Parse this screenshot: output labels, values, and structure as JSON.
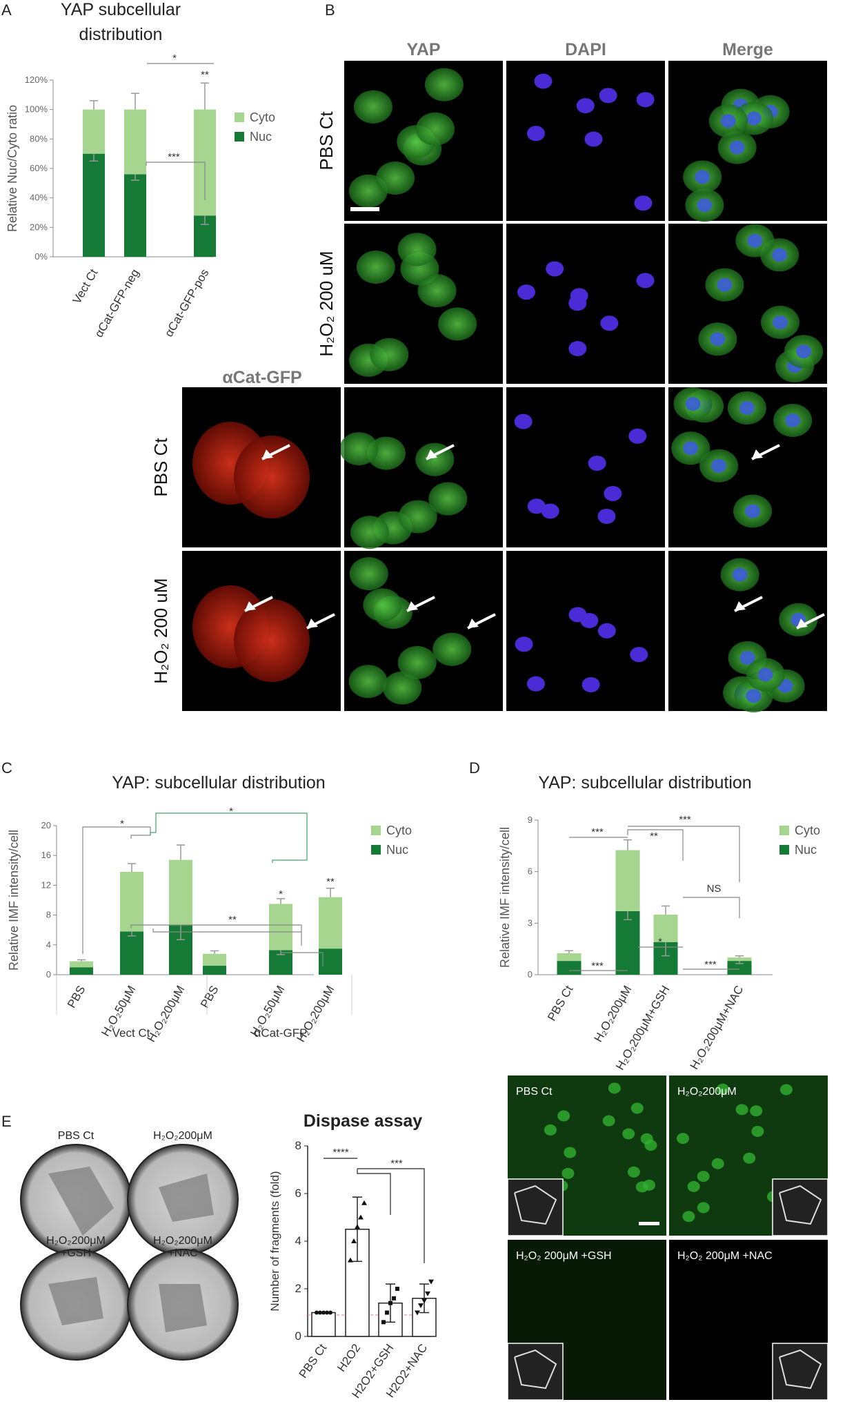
{
  "panel_labels": {
    "A": "A",
    "B": "B",
    "C": "C",
    "D": "D",
    "E": "E"
  },
  "colors": {
    "cyto": "#a6d58f",
    "nuc": "#147a35",
    "panel_bg": "#000000"
  },
  "panelB": {
    "columns": [
      "YAP",
      "DAPI",
      "Merge"
    ],
    "alpha_header": "αCat-GFP",
    "rows": [
      "PBS Ct",
      "H₂O₂ 200 uM",
      "PBS Ct",
      "H₂O₂ 200 uM"
    ]
  },
  "panelD_micro": {
    "labels": [
      "PBS  Ct",
      "H₂O₂200μM",
      "H₂O₂ 200μM +GSH",
      "H₂O₂ 200μM +NAC"
    ]
  },
  "panelE_dishes": {
    "labels": [
      "PBS Ct",
      "H₂O₂200μM",
      "H₂O₂200μM",
      "+GSH",
      "H₂O₂200μM",
      "+NAC"
    ]
  },
  "chart_data": [
    {
      "id": "A",
      "type": "bar",
      "title": "YAP subcellular distribution",
      "ylabel": "Relative Nuc/Cyto ratio",
      "yticks": [
        "0%",
        "20%",
        "40%",
        "60%",
        "80%",
        "100%",
        "120%"
      ],
      "ylim": [
        0,
        120
      ],
      "categories": [
        "Vect Ct",
        "αCat-GFP-neg",
        "αCat-GFP-pos"
      ],
      "series": [
        {
          "name": "Nuc",
          "values": [
            70,
            56,
            28
          ],
          "errors": [
            5,
            4,
            6
          ]
        },
        {
          "name": "Cyto",
          "values": [
            30,
            44,
            72
          ],
          "errors": [
            6,
            11,
            18
          ]
        }
      ],
      "legend": [
        "Cyto",
        "Nuc"
      ],
      "legend_position": "right",
      "significance": [
        "*",
        "**",
        "***"
      ]
    },
    {
      "id": "C",
      "type": "bar",
      "title": "YAP: subcellular distribution",
      "ylabel": "Relative IMF intensity/cell",
      "yticks": [
        "0",
        "4",
        "8",
        "12",
        "16",
        "20"
      ],
      "ylim": [
        0,
        20
      ],
      "categories": [
        "PBS",
        "H₂O₂50μM",
        "H₂O₂200μM",
        "PBS",
        "H₂O₂50μM",
        "H₂O₂200μM"
      ],
      "groups": [
        "Vect Ct",
        "αCat-GFP"
      ],
      "series": [
        {
          "name": "Nuc",
          "values": [
            1.0,
            5.8,
            6.7,
            1.2,
            3.3,
            3.5
          ],
          "errors": [
            0,
            0.6,
            2.0,
            0,
            0.6,
            0
          ]
        },
        {
          "name": "Cyto",
          "values": [
            0.8,
            8.0,
            8.7,
            1.6,
            6.2,
            6.9
          ],
          "errors": [
            0.2,
            1.1,
            2.0,
            0.4,
            0.7,
            1.2
          ]
        }
      ],
      "legend": [
        "Cyto",
        "Nuc"
      ],
      "legend_position": "right",
      "significance": [
        "*",
        "*",
        "**",
        "*",
        "**"
      ]
    },
    {
      "id": "D",
      "type": "bar",
      "title": "YAP: subcellular distribution",
      "ylabel": "Relative IMF intensity/cell",
      "yticks": [
        "0",
        "3",
        "6",
        "9"
      ],
      "ylim": [
        0,
        9
      ],
      "categories": [
        "PBS Ct",
        "H₂O₂200μM",
        "H₂O₂200μM+GSH",
        "H₂O₂200μM+NAC"
      ],
      "series": [
        {
          "name": "Nuc",
          "values": [
            0.8,
            3.7,
            1.9,
            0.8
          ],
          "errors": [
            0,
            0.5,
            0.8,
            0.15
          ]
        },
        {
          "name": "Cyto",
          "values": [
            0.45,
            3.55,
            1.6,
            0.2
          ],
          "errors": [
            0.15,
            0.6,
            0.5,
            0.1
          ]
        }
      ],
      "legend": [
        "Cyto",
        "Nuc"
      ],
      "legend_position": "right",
      "significance": [
        "***",
        "***",
        "**",
        "NS",
        "***",
        "*",
        "***"
      ]
    },
    {
      "id": "E",
      "type": "bar",
      "title": "Dispase assay",
      "ylabel": "Number of fragments (fold)",
      "yticks": [
        "0",
        "2",
        "4",
        "6",
        "8"
      ],
      "ylim": [
        0,
        8
      ],
      "categories": [
        "PBS Ct",
        "H2O2",
        "H2O2+GSH",
        "H2O2+NAC"
      ],
      "values": [
        1.0,
        4.5,
        1.4,
        1.6
      ],
      "errors": [
        0,
        1.35,
        0.8,
        0.6
      ],
      "points": [
        [
          1,
          1,
          1,
          1,
          1
        ],
        [
          3.2,
          4.0,
          4.6,
          5.0,
          5.6
        ],
        [
          0.6,
          1.0,
          1.4,
          1.6,
          2.0
        ],
        [
          1.0,
          1.3,
          1.5,
          1.8,
          2.3
        ]
      ],
      "reference_line": 0.9,
      "significance": [
        "****",
        "***"
      ]
    }
  ]
}
